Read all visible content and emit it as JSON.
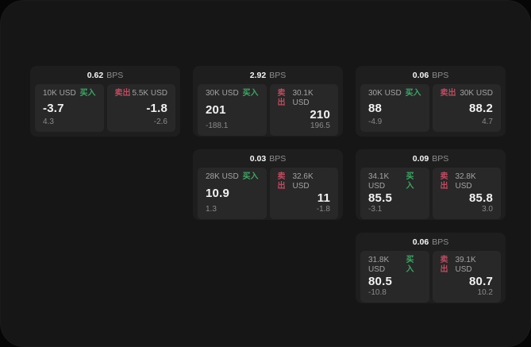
{
  "labels": {
    "bps_unit": "BPS",
    "buy": "买入",
    "sell": "卖出"
  },
  "colors": {
    "window_background": "#161616",
    "card_background": "#1e1e1e",
    "panel_background": "#282828",
    "buy_green": "#3aa865",
    "sell_red": "#c04a60",
    "value_text": "#f2f2f2",
    "muted_text": "#8a8a8a"
  },
  "cards": [
    {
      "bps": "0.62",
      "buy": {
        "amount": "10K USD",
        "value": "-3.7",
        "sub": "4.3"
      },
      "sell": {
        "amount": "5.5K USD",
        "value": "-1.8",
        "sub": "-2.6"
      }
    },
    {
      "bps": "2.92",
      "buy": {
        "amount": "30K USD",
        "value": "201",
        "sub": "-188.1"
      },
      "sell": {
        "amount": "30.1K USD",
        "value": "210",
        "sub": "196.5"
      }
    },
    {
      "bps": "0.06",
      "buy": {
        "amount": "30K USD",
        "value": "88",
        "sub": "-4.9"
      },
      "sell": {
        "amount": "30K USD",
        "value": "88.2",
        "sub": "4.7"
      }
    },
    {
      "bps": "0.03",
      "buy": {
        "amount": "28K USD",
        "value": "10.9",
        "sub": "1.3"
      },
      "sell": {
        "amount": "32.6K USD",
        "value": "11",
        "sub": "-1.8"
      }
    },
    {
      "bps": "0.09",
      "buy": {
        "amount": "34.1K USD",
        "value": "85.5",
        "sub": "-3.1"
      },
      "sell": {
        "amount": "32.8K USD",
        "value": "85.8",
        "sub": "3.0"
      }
    },
    {
      "bps": "0.06",
      "buy": {
        "amount": "31.8K USD",
        "value": "80.5",
        "sub": "-10.8"
      },
      "sell": {
        "amount": "39.1K USD",
        "value": "80.7",
        "sub": "10.2"
      }
    }
  ]
}
